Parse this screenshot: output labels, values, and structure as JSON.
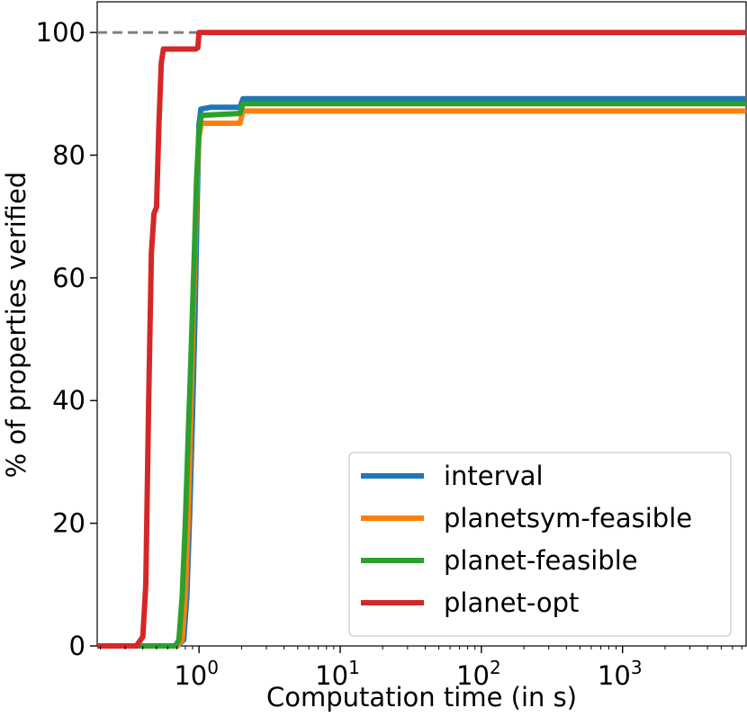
{
  "chart_data": {
    "type": "line",
    "title": "",
    "xlabel": "Computation time (in s)",
    "ylabel": "% of properties verified",
    "xscale": "log",
    "xlim": [
      0.19,
      7500
    ],
    "ylim": [
      0,
      105
    ],
    "x_ticks": [
      {
        "value": 1,
        "base": "10",
        "exp": "0"
      },
      {
        "value": 10,
        "base": "10",
        "exp": "1"
      },
      {
        "value": 100,
        "base": "10",
        "exp": "2"
      },
      {
        "value": 1000,
        "base": "10",
        "exp": "3"
      }
    ],
    "y_ticks": [
      "0",
      "20",
      "40",
      "60",
      "80",
      "100"
    ],
    "reference_line": {
      "y": 100,
      "x_end": 1.0,
      "style": "dashed",
      "color": "#808080"
    },
    "legend_position": "lower-right",
    "series": [
      {
        "name": "interval",
        "color": "#1f77b4",
        "points": [
          [
            0.19,
            0
          ],
          [
            0.7,
            0
          ],
          [
            0.78,
            1
          ],
          [
            0.82,
            8
          ],
          [
            0.86,
            22
          ],
          [
            0.9,
            38
          ],
          [
            0.94,
            55
          ],
          [
            0.97,
            72
          ],
          [
            1.0,
            85
          ],
          [
            1.03,
            87.5
          ],
          [
            1.2,
            87.8
          ],
          [
            1.95,
            87.8
          ],
          [
            2.05,
            89.2
          ],
          [
            7500,
            89.2
          ]
        ]
      },
      {
        "name": "planetsym-feasible",
        "color": "#ff7f0e",
        "points": [
          [
            0.19,
            0
          ],
          [
            0.7,
            0
          ],
          [
            0.76,
            1
          ],
          [
            0.8,
            8
          ],
          [
            0.84,
            22
          ],
          [
            0.88,
            40
          ],
          [
            0.92,
            58
          ],
          [
            0.96,
            74
          ],
          [
            1.0,
            83
          ],
          [
            1.04,
            85.2
          ],
          [
            1.95,
            85.2
          ],
          [
            2.05,
            87.2
          ],
          [
            7500,
            87.2
          ]
        ]
      },
      {
        "name": "planet-feasible",
        "color": "#2ca02c",
        "points": [
          [
            0.19,
            0
          ],
          [
            0.68,
            0
          ],
          [
            0.72,
            1
          ],
          [
            0.76,
            8
          ],
          [
            0.8,
            20
          ],
          [
            0.84,
            35
          ],
          [
            0.88,
            48
          ],
          [
            0.92,
            62
          ],
          [
            0.96,
            76
          ],
          [
            1.0,
            84
          ],
          [
            1.04,
            86.5
          ],
          [
            1.95,
            86.8
          ],
          [
            2.05,
            88.4
          ],
          [
            7500,
            88.4
          ]
        ]
      },
      {
        "name": "planet-opt",
        "color": "#d62728",
        "points": [
          [
            0.19,
            0
          ],
          [
            0.36,
            0
          ],
          [
            0.4,
            1.5
          ],
          [
            0.42,
            10
          ],
          [
            0.44,
            40
          ],
          [
            0.46,
            64
          ],
          [
            0.48,
            70.5
          ],
          [
            0.5,
            71.5
          ],
          [
            0.52,
            85
          ],
          [
            0.54,
            95
          ],
          [
            0.56,
            97.3
          ],
          [
            0.95,
            97.3
          ],
          [
            0.98,
            97.5
          ],
          [
            1.0,
            100
          ],
          [
            7500,
            100
          ]
        ]
      }
    ]
  }
}
